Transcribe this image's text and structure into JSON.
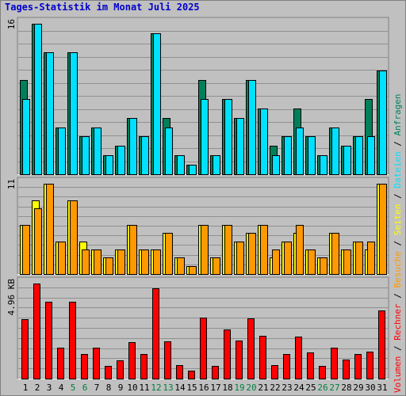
{
  "title": "Tages-Statistik im Monat Juli 2025",
  "colors": {
    "anfragen": "#00805a",
    "dateien": "#00e0ff",
    "seiten": "#ffff00",
    "besuche": "#ff9900",
    "kbytes": "#ff0000",
    "weekend_label": "#008040",
    "weekday_label": "#000000"
  },
  "chart_data": [
    {
      "type": "bar",
      "panel": "top",
      "ymax_label": "16",
      "ymax": 16,
      "categories": [
        "1",
        "2",
        "3",
        "4",
        "5",
        "6",
        "7",
        "8",
        "9",
        "10",
        "11",
        "12",
        "13",
        "14",
        "15",
        "16",
        "17",
        "18",
        "19",
        "20",
        "21",
        "22",
        "23",
        "24",
        "25",
        "26",
        "27",
        "28",
        "29",
        "30",
        "31"
      ],
      "weekend_days": [
        "5",
        "6",
        "12",
        "13",
        "19",
        "20",
        "26",
        "27"
      ],
      "series": [
        {
          "name": "Anfragen",
          "values": [
            10,
            16,
            13,
            5,
            13,
            4,
            5,
            2,
            3,
            6,
            4,
            15,
            6,
            2,
            1,
            10,
            2,
            8,
            6,
            10,
            7,
            3,
            4,
            7,
            4,
            2,
            5,
            3,
            4,
            8,
            11
          ]
        },
        {
          "name": "Dateien",
          "values": [
            8,
            16,
            13,
            5,
            13,
            4,
            5,
            2,
            3,
            6,
            4,
            15,
            5,
            2,
            1,
            8,
            2,
            8,
            6,
            10,
            7,
            2,
            4,
            5,
            4,
            2,
            5,
            3,
            4,
            4,
            11
          ]
        }
      ],
      "side_labels": [
        "Anfragen",
        "Dateien"
      ]
    },
    {
      "type": "bar",
      "panel": "middle",
      "ymax_label": "11",
      "ymax": 11,
      "categories": [
        "1",
        "2",
        "3",
        "4",
        "5",
        "6",
        "7",
        "8",
        "9",
        "10",
        "11",
        "12",
        "13",
        "14",
        "15",
        "16",
        "17",
        "18",
        "19",
        "20",
        "21",
        "22",
        "23",
        "24",
        "25",
        "26",
        "27",
        "28",
        "29",
        "30",
        "31"
      ],
      "series": [
        {
          "name": "Seiten",
          "values": [
            6,
            9,
            11,
            4,
            9,
            4,
            3,
            2,
            3,
            6,
            3,
            3,
            5,
            2,
            1,
            6,
            2,
            6,
            4,
            5,
            6,
            2,
            4,
            5,
            3,
            2,
            5,
            3,
            4,
            3,
            11
          ]
        },
        {
          "name": "Besuche",
          "values": [
            6,
            8,
            11,
            4,
            9,
            3,
            3,
            2,
            3,
            6,
            3,
            3,
            5,
            2,
            1,
            6,
            2,
            6,
            4,
            5,
            6,
            3,
            4,
            6,
            3,
            2,
            5,
            3,
            4,
            4,
            11
          ]
        }
      ],
      "side_labels": [
        "Seiten",
        "Besuche"
      ]
    },
    {
      "type": "bar",
      "panel": "bottom",
      "ymax_label": "4.96 KB",
      "ymax": 4.96,
      "categories": [
        "1",
        "2",
        "3",
        "4",
        "5",
        "6",
        "7",
        "8",
        "9",
        "10",
        "11",
        "12",
        "13",
        "14",
        "15",
        "16",
        "17",
        "18",
        "19",
        "20",
        "21",
        "22",
        "23",
        "24",
        "25",
        "26",
        "27",
        "28",
        "29",
        "30",
        "31"
      ],
      "series": [
        {
          "name": "KBytes",
          "values": [
            3.1,
            4.96,
            4.0,
            1.6,
            4.0,
            1.3,
            1.6,
            0.65,
            0.95,
            1.9,
            1.3,
            4.7,
            1.95,
            0.7,
            0.4,
            3.2,
            0.65,
            2.55,
            2.0,
            3.15,
            2.25,
            0.7,
            1.3,
            2.2,
            1.35,
            0.65,
            1.6,
            1.0,
            1.3,
            1.4,
            3.55
          ]
        }
      ],
      "side_labels": [
        "Rechner",
        "Volumen"
      ]
    }
  ]
}
